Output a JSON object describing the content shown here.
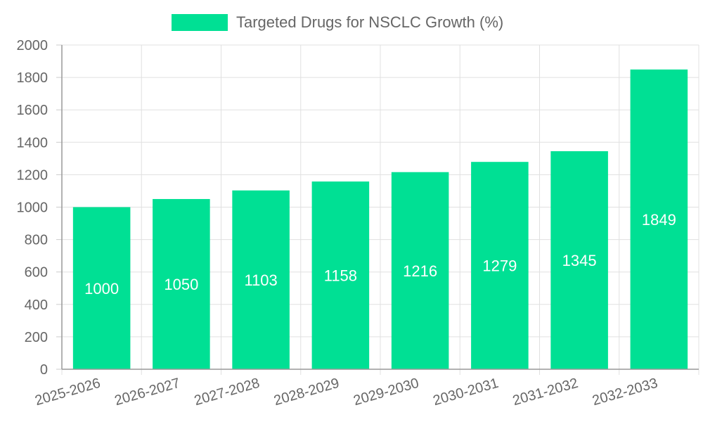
{
  "chart_data": {
    "type": "bar",
    "categories": [
      "2025-2026",
      "2026-2027",
      "2027-2028",
      "2028-2029",
      "2029-2030",
      "2030-2031",
      "2031-2032",
      "2032-2033"
    ],
    "series": [
      {
        "name": "Targeted Drugs for NSCLC Growth (%)",
        "values": [
          1000,
          1050,
          1103,
          1158,
          1216,
          1279,
          1345,
          1849
        ],
        "color": "#00e094"
      }
    ],
    "y_ticks": [
      "0",
      "200",
      "400",
      "600",
      "800",
      "1000",
      "1200",
      "1400",
      "1600",
      "1800",
      "2000"
    ],
    "ylim": [
      0,
      2000
    ],
    "grid": true,
    "legend_position": "top",
    "data_labels": true
  }
}
